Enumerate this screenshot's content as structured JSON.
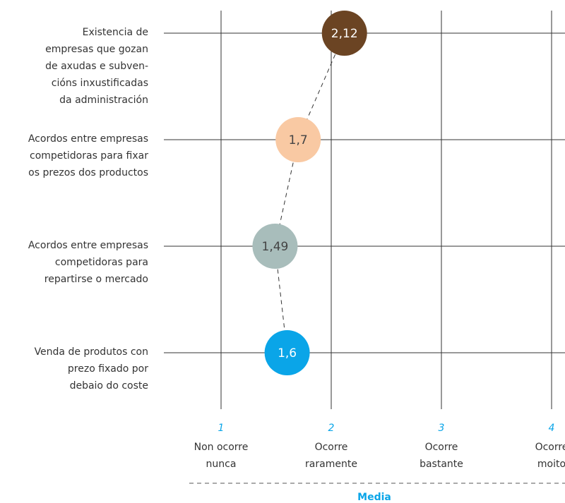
{
  "chart_data": {
    "type": "dot",
    "categories": [
      [
        "Existencia de",
        "empresas que gozan",
        "de axudas e subven-",
        "cións inxustificadas",
        "da administración"
      ],
      [
        "Acordos entre empresas",
        "competidoras para fixar",
        "os prezos dos productos"
      ],
      [
        "Acordos entre empresas",
        "competidoras para",
        "repartirse o mercado"
      ],
      [
        "Venda de produtos con",
        "prezo fixado por",
        "debaio do coste"
      ]
    ],
    "values": [
      2.12,
      1.7,
      1.49,
      1.6
    ],
    "value_labels": [
      "2,12",
      "1,7",
      "1,49",
      "1,6"
    ],
    "colors": [
      "#6b4423",
      "#f9c9a3",
      "#a8bdbb",
      "#0aa5e8"
    ],
    "xlim": [
      0.5,
      4.5
    ],
    "xticks": [
      1,
      2,
      3,
      4
    ],
    "xtick_descriptions": [
      [
        "Non ocorre",
        "nunca"
      ],
      [
        "Ocorre",
        "raramente"
      ],
      [
        "Ocorre",
        "bastante"
      ],
      [
        "Ocorre",
        "moito"
      ]
    ],
    "xlabel": "Media",
    "grid": true
  }
}
